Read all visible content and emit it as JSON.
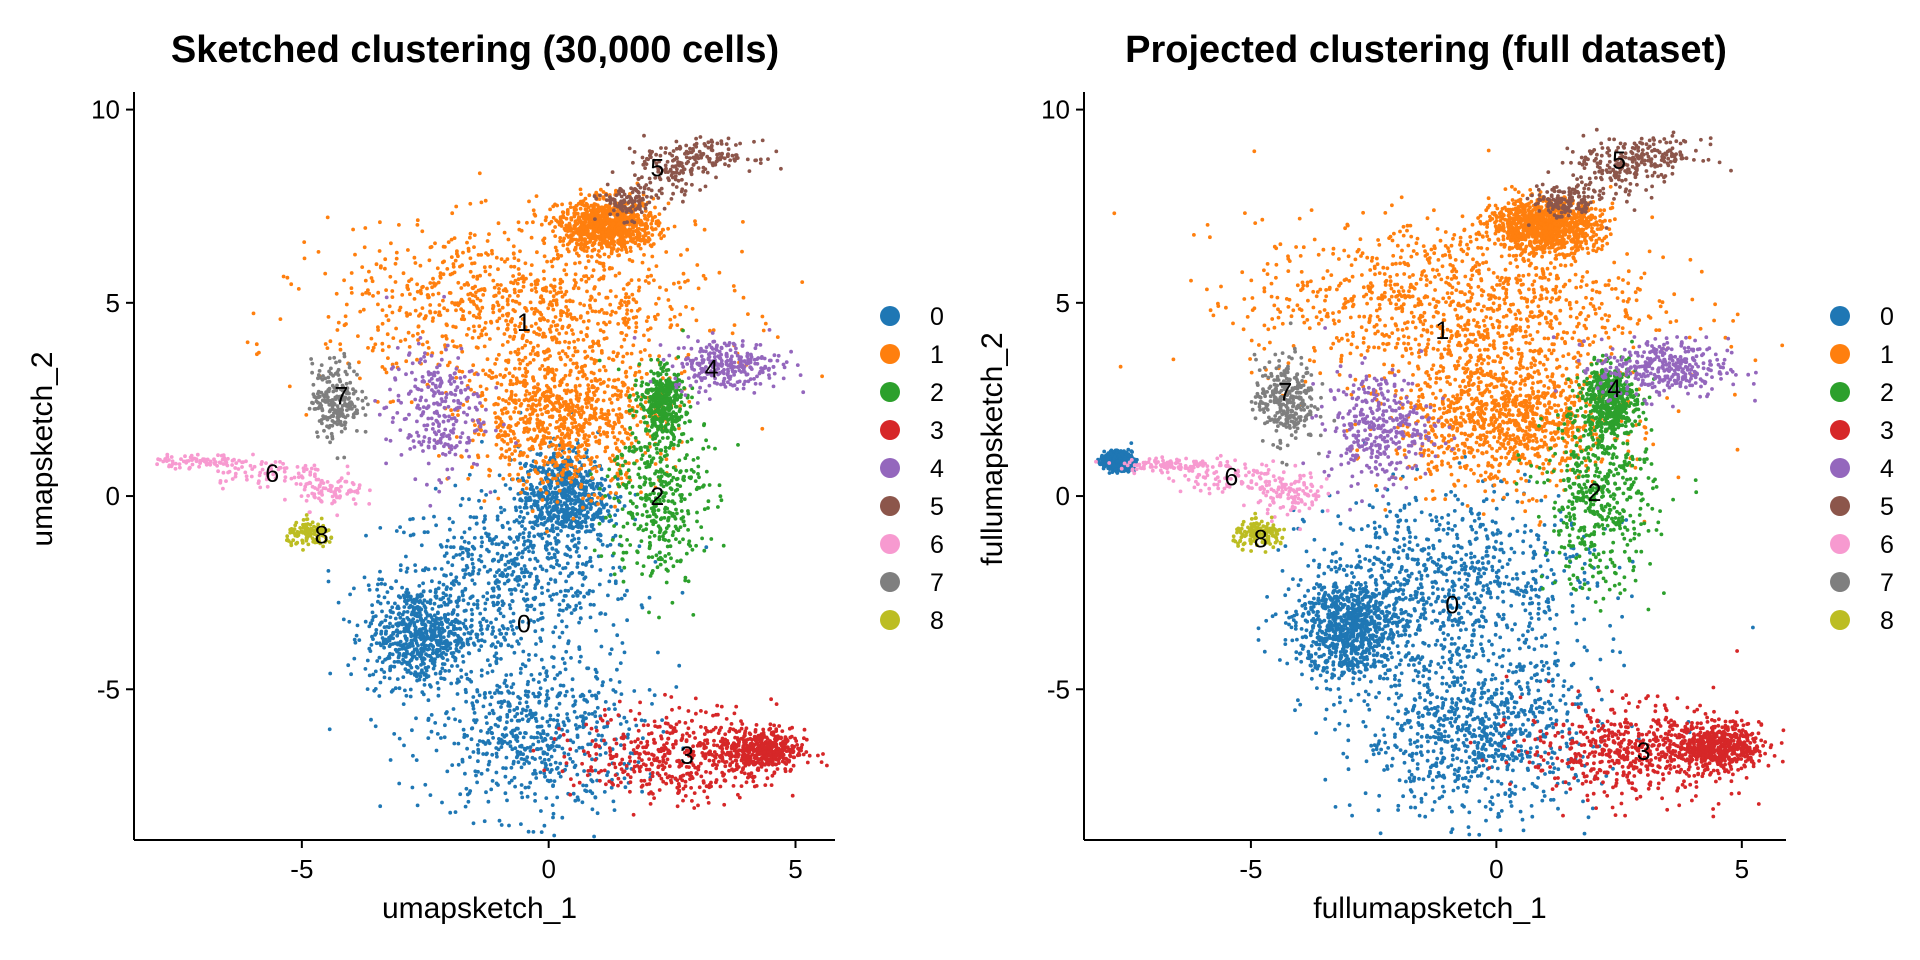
{
  "colors": {
    "0": "#1f77b4",
    "1": "#ff7f0e",
    "2": "#2ca02c",
    "3": "#d62728",
    "4": "#9467bd",
    "5": "#8c564b",
    "6": "#f79ad0",
    "7": "#7f7f7f",
    "8": "#bcbd22"
  },
  "chart_data": [
    {
      "type": "scatter",
      "title": "Sketched clustering (30,000 cells)",
      "xlabel": "umapsketch_1",
      "ylabel": "umapsketch_2",
      "xlim": [
        -8.4,
        5.8
      ],
      "ylim": [
        -8.9,
        10.3
      ],
      "xticks": [
        -5,
        0,
        5
      ],
      "yticks": [
        -5,
        0,
        5,
        10
      ],
      "xtick_labels": [
        "-5",
        "0",
        "5"
      ],
      "ytick_labels": [
        "-5",
        "0",
        "5",
        "10"
      ],
      "legend_position": "right",
      "legend": [
        "0",
        "1",
        "2",
        "3",
        "4",
        "5",
        "6",
        "7",
        "8"
      ],
      "series": [
        {
          "name": "0",
          "label_pos": [
            -0.5,
            -3.3
          ],
          "point_count": 2600,
          "regions": [
            [
              -0.8,
              -2.2,
              2.3,
              2.0
            ],
            [
              -0.3,
              -6.2,
              2.0,
              1.9
            ],
            [
              -2.6,
              -3.6,
              1.0,
              1.2
            ],
            [
              0.3,
              0.0,
              0.8,
              1.1
            ]
          ]
        },
        {
          "name": "1",
          "label_pos": [
            -0.5,
            4.5
          ],
          "point_count": 2700,
          "regions": [
            [
              -0.6,
              4.9,
              3.5,
              1.9
            ],
            [
              0.3,
              2.0,
              1.8,
              1.6
            ],
            [
              1.2,
              7.0,
              0.9,
              0.6
            ]
          ]
        },
        {
          "name": "2",
          "label_pos": [
            2.2,
            0.0
          ],
          "point_count": 800,
          "regions": [
            [
              2.2,
              0.0,
              0.9,
              2.0
            ],
            [
              2.3,
              2.4,
              0.4,
              0.8
            ]
          ]
        },
        {
          "name": "3",
          "label_pos": [
            2.8,
            -6.7
          ],
          "point_count": 900,
          "regions": [
            [
              2.6,
              -6.7,
              1.8,
              1.1
            ],
            [
              4.3,
              -6.6,
              0.8,
              0.5
            ]
          ]
        },
        {
          "name": "4",
          "label_pos": [
            3.3,
            3.3
          ],
          "point_count": 550,
          "regions": [
            [
              3.6,
              3.4,
              1.0,
              0.6
            ],
            [
              -2.3,
              2.2,
              0.9,
              1.5
            ]
          ]
        },
        {
          "name": "5",
          "label_pos": [
            2.2,
            8.5
          ],
          "point_count": 320,
          "regions": [
            [
              2.4,
              8.5,
              0.8,
              0.7
            ],
            [
              3.3,
              8.8,
              0.8,
              0.35
            ],
            [
              1.6,
              7.6,
              0.5,
              0.4
            ]
          ]
        },
        {
          "name": "6",
          "label_pos": [
            -5.6,
            0.6
          ],
          "point_count": 240,
          "regions": [
            [
              -5.7,
              0.6,
              1.2,
              0.35
            ],
            [
              -7.0,
              0.9,
              0.9,
              0.15
            ],
            [
              -4.4,
              0.1,
              0.6,
              0.4
            ]
          ]
        },
        {
          "name": "7",
          "label_pos": [
            -4.2,
            2.6
          ],
          "point_count": 230,
          "regions": [
            [
              -4.3,
              2.5,
              0.45,
              0.9
            ]
          ]
        },
        {
          "name": "8",
          "label_pos": [
            -4.6,
            -1.0
          ],
          "point_count": 120,
          "regions": [
            [
              -4.8,
              -1.0,
              0.45,
              0.28
            ]
          ]
        }
      ]
    },
    {
      "type": "scatter",
      "title": "Projected clustering (full dataset)",
      "xlabel": "fullumapsketch_1",
      "ylabel": "fullumapsketch_2",
      "xlim": [
        -8.4,
        5.9
      ],
      "ylim": [
        -8.9,
        10.3
      ],
      "xticks": [
        -5,
        0,
        5
      ],
      "yticks": [
        -5,
        0,
        5,
        10
      ],
      "xtick_labels": [
        "-5",
        "0",
        "5"
      ],
      "ytick_labels": [
        "-5",
        "0",
        "5",
        "10"
      ],
      "legend_position": "right",
      "legend": [
        "0",
        "1",
        "2",
        "3",
        "4",
        "5",
        "6",
        "7",
        "8"
      ],
      "series": [
        {
          "name": "0",
          "label_pos": [
            -0.9,
            -2.8
          ],
          "point_count": 3400,
          "regions": [
            [
              -0.9,
              -2.3,
              2.6,
              2.2
            ],
            [
              -0.4,
              -6.2,
              2.2,
              1.9
            ],
            [
              -3.0,
              -3.4,
              1.0,
              1.2
            ],
            [
              -7.7,
              0.9,
              0.25,
              0.2
            ]
          ]
        },
        {
          "name": "1",
          "label_pos": [
            -1.1,
            4.3
          ],
          "point_count": 3200,
          "regions": [
            [
              -0.9,
              5.0,
              3.7,
              2.0
            ],
            [
              0.2,
              2.0,
              2.0,
              1.6
            ],
            [
              1.0,
              7.0,
              1.0,
              0.6
            ]
          ]
        },
        {
          "name": "2",
          "label_pos": [
            2.0,
            0.1
          ],
          "point_count": 1000,
          "regions": [
            [
              2.1,
              0.0,
              1.0,
              2.2
            ],
            [
              2.3,
              2.5,
              0.5,
              0.8
            ]
          ]
        },
        {
          "name": "3",
          "label_pos": [
            3.0,
            -6.6
          ],
          "point_count": 1100,
          "regions": [
            [
              2.8,
              -6.6,
              2.0,
              1.1
            ],
            [
              4.5,
              -6.5,
              0.8,
              0.5
            ]
          ]
        },
        {
          "name": "4",
          "label_pos": [
            2.4,
            2.8
          ],
          "point_count": 700,
          "regions": [
            [
              3.4,
              3.3,
              1.2,
              0.7
            ],
            [
              -2.4,
              1.8,
              1.0,
              1.3
            ]
          ]
        },
        {
          "name": "5",
          "label_pos": [
            2.5,
            8.7
          ],
          "point_count": 400,
          "regions": [
            [
              2.3,
              8.5,
              0.9,
              0.7
            ],
            [
              3.2,
              8.8,
              0.9,
              0.4
            ],
            [
              1.4,
              7.6,
              0.6,
              0.4
            ]
          ]
        },
        {
          "name": "6",
          "label_pos": [
            -5.4,
            0.5
          ],
          "point_count": 300,
          "regions": [
            [
              -5.3,
              0.5,
              1.3,
              0.4
            ],
            [
              -6.7,
              0.8,
              0.9,
              0.18
            ],
            [
              -4.2,
              0.0,
              0.6,
              0.5
            ]
          ]
        },
        {
          "name": "7",
          "label_pos": [
            -4.3,
            2.7
          ],
          "point_count": 300,
          "regions": [
            [
              -4.3,
              2.5,
              0.55,
              1.0
            ]
          ]
        },
        {
          "name": "8",
          "label_pos": [
            -4.8,
            -1.1
          ],
          "point_count": 150,
          "regions": [
            [
              -4.8,
              -1.0,
              0.5,
              0.3
            ]
          ]
        }
      ]
    }
  ]
}
